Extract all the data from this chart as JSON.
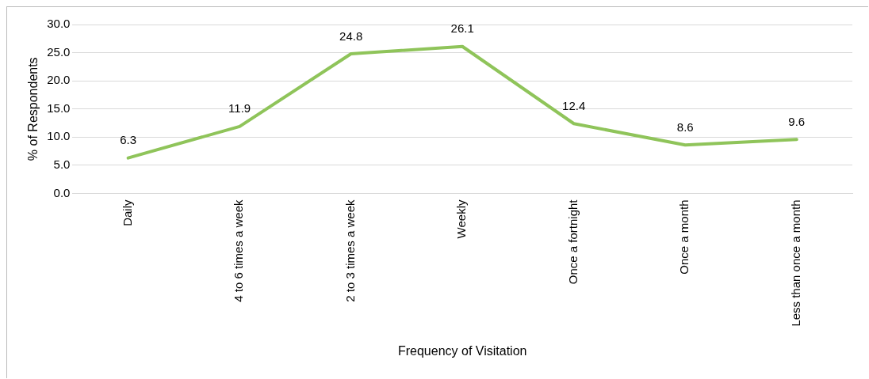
{
  "chart_data": {
    "type": "line",
    "xlabel": "Frequency of Visitation",
    "ylabel": "% of Respondents",
    "categories": [
      "Daily",
      "4 to 6 times a week",
      "2 to 3 times a week",
      "Weekly",
      "Once a fortnight",
      "Once a month",
      "Less than once a month"
    ],
    "series": [
      {
        "color": "#8fc45a",
        "values": [
          6.3,
          11.9,
          24.8,
          26.1,
          12.4,
          8.6,
          9.6
        ]
      }
    ],
    "ylim": [
      0,
      30
    ],
    "yticks": [
      {
        "value": 0,
        "label": "0.0"
      },
      {
        "value": 5,
        "label": "5.0"
      },
      {
        "value": 10,
        "label": "10.0"
      },
      {
        "value": 15,
        "label": "15.0"
      },
      {
        "value": 20,
        "label": "20.0"
      },
      {
        "value": 25,
        "label": "25.0"
      },
      {
        "value": 30,
        "label": "30.0"
      }
    ],
    "grid": "y",
    "legend": false,
    "marker": "none",
    "line_style": "solid",
    "data_labels": true
  }
}
